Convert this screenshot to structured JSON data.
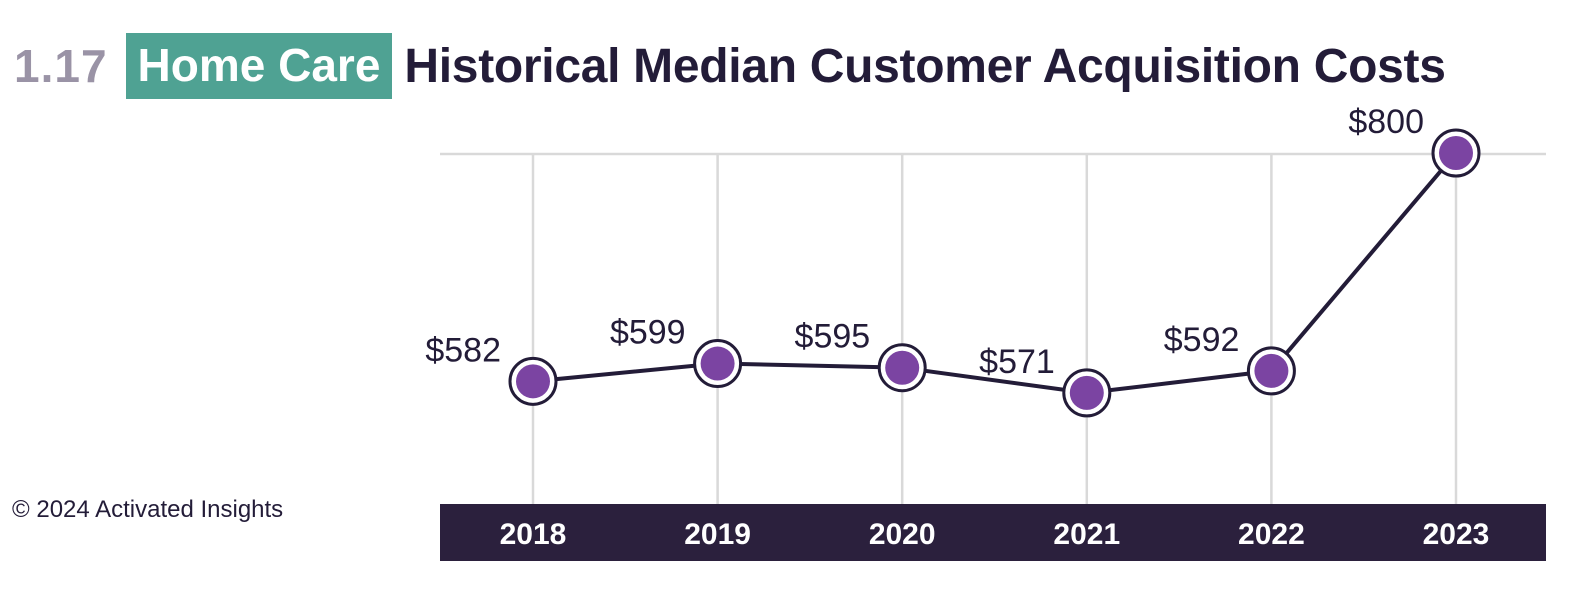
{
  "header": {
    "figure_number": "1.17",
    "badge": "Home Care",
    "title": "Historical Median Customer Acquisition Costs"
  },
  "footer": {
    "copyright": "© 2024 Activated Insights"
  },
  "colors": {
    "badge_bg": "#4fa293",
    "title": "#231c38",
    "figure_number": "#9a93a6",
    "marker_fill": "#7b44a2",
    "line": "#231c38",
    "axis_band": "#2b203d",
    "grid": "#d9d9d9"
  },
  "chart_data": {
    "type": "line",
    "title": "Historical Median Customer Acquisition Costs",
    "categories": [
      "2018",
      "2019",
      "2020",
      "2021",
      "2022",
      "2023"
    ],
    "series": [
      {
        "name": "Median Customer Acquisition Cost",
        "values": [
          582,
          599,
          595,
          571,
          592,
          800
        ]
      }
    ],
    "data_labels": [
      "$582",
      "$599",
      "$595",
      "$571",
      "$592",
      "$800"
    ],
    "ylim": [
      400,
      800
    ],
    "grid": true,
    "xlabel": "",
    "ylabel": ""
  }
}
